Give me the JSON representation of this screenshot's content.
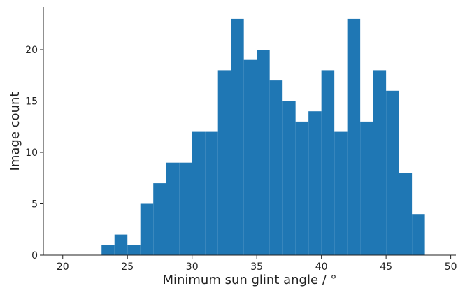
{
  "chart_data": {
    "type": "histogram",
    "x_label": "Minimum sun glint angle / °",
    "y_label": "Image count",
    "bins": [
      23,
      24,
      25,
      26,
      27,
      28,
      29,
      30,
      31,
      32,
      33,
      34,
      35,
      36,
      37,
      38,
      39,
      40,
      41,
      42,
      43,
      44,
      45,
      46,
      47,
      48
    ],
    "values": [
      1,
      2,
      1,
      5,
      7,
      9,
      9,
      12,
      12,
      18,
      23,
      19,
      20,
      17,
      15,
      13,
      14,
      18,
      12,
      23,
      13,
      18,
      16,
      8,
      4
    ],
    "color": "#1f77b4",
    "xlim": [
      18.5,
      50.4
    ],
    "xticks": [
      20,
      25,
      30,
      35,
      40,
      45,
      50
    ],
    "ylim": [
      0,
      24.15
    ],
    "yticks": [
      0,
      5,
      10,
      15,
      20
    ],
    "grid": false
  }
}
